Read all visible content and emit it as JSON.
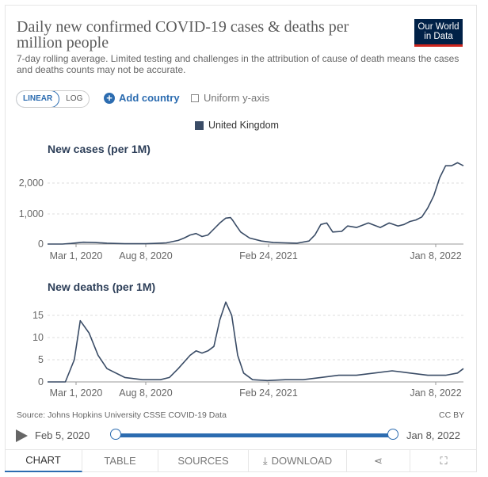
{
  "title": "Daily new confirmed COVID-19 cases & deaths per million people",
  "subtitle": "7-day rolling average. Limited testing and challenges in the attribution of cause of death means the cases and deaths counts may not be accurate.",
  "logo": {
    "line1": "Our World",
    "line2": "in Data"
  },
  "controls": {
    "linear": "LINEAR",
    "log": "LOG",
    "add_country": "Add country",
    "uniform_axis": "Uniform y-axis"
  },
  "legend": "United Kingdom",
  "footer": {
    "source": "Source: Johns Hopkins University CSSE COVID-19 Data",
    "license": "CC BY"
  },
  "timeline": {
    "start": "Feb 5, 2020",
    "end": "Jan 8, 2022"
  },
  "tabs": {
    "chart": "CHART",
    "table": "TABLE",
    "sources": "SOURCES",
    "download": "DOWNLOAD"
  },
  "colors": {
    "line": "#3a4c66",
    "accent": "#2c6cb0",
    "grid": "#dddddd"
  },
  "chart_data": [
    {
      "type": "line",
      "title": "New cases (per 1M)",
      "series": [
        {
          "name": "United Kingdom",
          "t": [
            0,
            25,
            40,
            60,
            80,
            100,
            130,
            165,
            180,
            200,
            220,
            230,
            240,
            250,
            260,
            270,
            280,
            290,
            300,
            308,
            312,
            318,
            325,
            340,
            360,
            380,
            400,
            420,
            440,
            450,
            460,
            470,
            480,
            495,
            505,
            520,
            540,
            560,
            575,
            590,
            600,
            610,
            620,
            630,
            640,
            650,
            660,
            670,
            680,
            690,
            695,
            700
          ],
          "values": [
            0,
            0,
            20,
            60,
            50,
            30,
            10,
            10,
            20,
            40,
            120,
            200,
            300,
            350,
            250,
            300,
            500,
            700,
            860,
            880,
            780,
            600,
            400,
            200,
            100,
            50,
            40,
            30,
            100,
            300,
            650,
            700,
            400,
            420,
            600,
            550,
            700,
            550,
            700,
            600,
            650,
            750,
            800,
            900,
            1200,
            1600,
            2200,
            2600,
            2600,
            2700,
            2650,
            2600
          ]
        }
      ],
      "x_ticks": [
        "Mar 1, 2020",
        "Aug 8, 2020",
        "Feb 24, 2021",
        "Jan 8, 2022"
      ],
      "y_ticks": [
        "0",
        "1,000",
        "2,000"
      ],
      "ylim": [
        0,
        3000
      ]
    },
    {
      "type": "line",
      "title": "New deaths (per 1M)",
      "series": [
        {
          "name": "United Kingdom",
          "t": [
            0,
            30,
            45,
            55,
            70,
            85,
            100,
            130,
            160,
            190,
            205,
            220,
            240,
            250,
            260,
            270,
            280,
            290,
            300,
            310,
            320,
            330,
            345,
            370,
            400,
            430,
            460,
            490,
            520,
            550,
            580,
            610,
            640,
            670,
            690,
            700
          ],
          "values": [
            0,
            0,
            5,
            13.8,
            11,
            6,
            3,
            1,
            0.5,
            0.5,
            1,
            3,
            6,
            7,
            6.5,
            7,
            8,
            14,
            18,
            15,
            6,
            2,
            0.5,
            0.3,
            0.5,
            0.5,
            1,
            1.5,
            1.5,
            2,
            2.5,
            2,
            1.5,
            1.5,
            2,
            3
          ]
        }
      ],
      "x_ticks": [
        "Mar 1, 2020",
        "Aug 8, 2020",
        "Feb 24, 2021",
        "Jan 8, 2022"
      ],
      "y_ticks": [
        "0",
        "5",
        "10",
        "15"
      ],
      "ylim": [
        0,
        20
      ]
    }
  ]
}
